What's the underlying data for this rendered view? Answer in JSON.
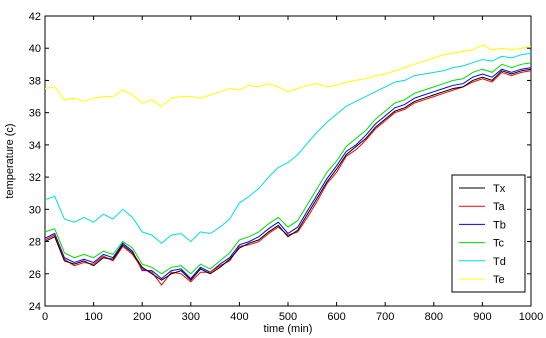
{
  "chart_data": {
    "type": "line",
    "title": "",
    "xlabel": "time (min)",
    "ylabel": "temperature (c)",
    "xlim": [
      0,
      1000
    ],
    "ylim": [
      24,
      42
    ],
    "xticks": [
      0,
      100,
      200,
      300,
      400,
      500,
      600,
      700,
      800,
      900,
      1000
    ],
    "yticks": [
      24,
      26,
      28,
      30,
      32,
      34,
      36,
      38,
      40,
      42
    ],
    "grid": false,
    "legend_position": "bottom-right",
    "x": [
      0,
      20,
      40,
      60,
      80,
      100,
      120,
      140,
      160,
      180,
      200,
      220,
      240,
      260,
      280,
      300,
      320,
      340,
      360,
      380,
      400,
      420,
      440,
      460,
      480,
      500,
      520,
      540,
      560,
      580,
      600,
      620,
      640,
      660,
      680,
      700,
      720,
      740,
      760,
      780,
      800,
      820,
      840,
      860,
      880,
      900,
      920,
      940,
      960,
      980,
      1000
    ],
    "series": [
      {
        "name": "Tx",
        "color": "#000000",
        "values": [
          28.0,
          28.3,
          26.8,
          26.6,
          26.8,
          26.5,
          27.0,
          26.9,
          27.8,
          27.3,
          26.4,
          26.0,
          25.6,
          26.0,
          26.2,
          25.6,
          26.3,
          26.0,
          26.4,
          26.9,
          27.6,
          27.9,
          28.1,
          28.6,
          29.0,
          28.3,
          28.7,
          29.7,
          30.7,
          31.7,
          32.5,
          33.4,
          33.9,
          34.4,
          35.1,
          35.6,
          36.1,
          36.3,
          36.7,
          36.9,
          37.1,
          37.3,
          37.5,
          37.6,
          38.0,
          38.2,
          38.0,
          38.6,
          38.4,
          38.6,
          38.7
        ]
      },
      {
        "name": "Ta",
        "color": "#ff0000",
        "values": [
          28.1,
          28.4,
          26.9,
          26.5,
          26.7,
          26.6,
          27.1,
          26.8,
          27.7,
          27.2,
          26.3,
          26.1,
          25.3,
          26.1,
          26.0,
          25.5,
          26.1,
          26.1,
          26.5,
          26.8,
          27.7,
          27.8,
          28.0,
          28.5,
          28.9,
          28.4,
          28.6,
          29.5,
          30.5,
          31.6,
          32.3,
          33.3,
          33.7,
          34.3,
          35.0,
          35.5,
          36.0,
          36.2,
          36.6,
          36.8,
          37.0,
          37.2,
          37.4,
          37.6,
          37.9,
          38.1,
          37.9,
          38.5,
          38.3,
          38.5,
          38.6
        ]
      },
      {
        "name": "Tb",
        "color": "#0000ff",
        "values": [
          28.2,
          28.5,
          27.0,
          26.7,
          26.9,
          26.7,
          27.2,
          27.0,
          27.9,
          27.4,
          26.2,
          26.2,
          25.7,
          26.2,
          26.3,
          25.7,
          26.4,
          26.1,
          26.6,
          27.0,
          27.8,
          28.0,
          28.3,
          28.8,
          29.2,
          28.5,
          28.9,
          29.9,
          30.9,
          31.9,
          32.7,
          33.6,
          34.0,
          34.6,
          35.3,
          35.8,
          36.3,
          36.5,
          36.9,
          37.1,
          37.3,
          37.5,
          37.7,
          37.8,
          38.2,
          38.4,
          38.2,
          38.7,
          38.5,
          38.7,
          38.8
        ]
      },
      {
        "name": "Tc",
        "color": "#00dd00",
        "values": [
          28.6,
          28.8,
          27.3,
          27.0,
          27.2,
          27.0,
          27.4,
          27.2,
          28.0,
          27.6,
          26.6,
          26.4,
          26.0,
          26.4,
          26.5,
          26.0,
          26.6,
          26.3,
          26.8,
          27.3,
          28.1,
          28.3,
          28.6,
          29.1,
          29.5,
          28.9,
          29.3,
          30.3,
          31.3,
          32.3,
          33.0,
          33.9,
          34.4,
          34.9,
          35.6,
          36.1,
          36.6,
          36.8,
          37.2,
          37.4,
          37.6,
          37.8,
          38.0,
          38.1,
          38.5,
          38.7,
          38.5,
          39.0,
          38.8,
          39.0,
          39.1
        ]
      },
      {
        "name": "Td",
        "color": "#00dddd",
        "values": [
          30.6,
          30.8,
          29.4,
          29.2,
          29.5,
          29.2,
          29.7,
          29.4,
          30.0,
          29.5,
          28.6,
          28.4,
          27.9,
          28.4,
          28.5,
          28.0,
          28.6,
          28.5,
          28.9,
          29.4,
          30.4,
          30.8,
          31.3,
          32.0,
          32.6,
          32.9,
          33.4,
          34.1,
          34.8,
          35.4,
          35.9,
          36.4,
          36.7,
          37.0,
          37.3,
          37.6,
          37.9,
          38.0,
          38.3,
          38.4,
          38.5,
          38.6,
          38.8,
          38.9,
          39.1,
          39.3,
          39.2,
          39.5,
          39.4,
          39.6,
          39.7
        ]
      },
      {
        "name": "Te",
        "color": "#ffff00",
        "values": [
          37.5,
          37.6,
          36.8,
          36.9,
          36.7,
          36.9,
          37.0,
          37.0,
          37.4,
          37.1,
          36.6,
          36.8,
          36.4,
          36.9,
          37.0,
          37.0,
          36.9,
          37.1,
          37.3,
          37.5,
          37.4,
          37.7,
          37.6,
          37.8,
          37.6,
          37.3,
          37.5,
          37.7,
          37.8,
          37.6,
          37.7,
          37.9,
          38.0,
          38.1,
          38.3,
          38.4,
          38.6,
          38.8,
          39.0,
          39.2,
          39.4,
          39.6,
          39.7,
          39.8,
          39.9,
          40.2,
          39.9,
          40.0,
          39.9,
          40.0,
          40.1
        ]
      }
    ]
  }
}
